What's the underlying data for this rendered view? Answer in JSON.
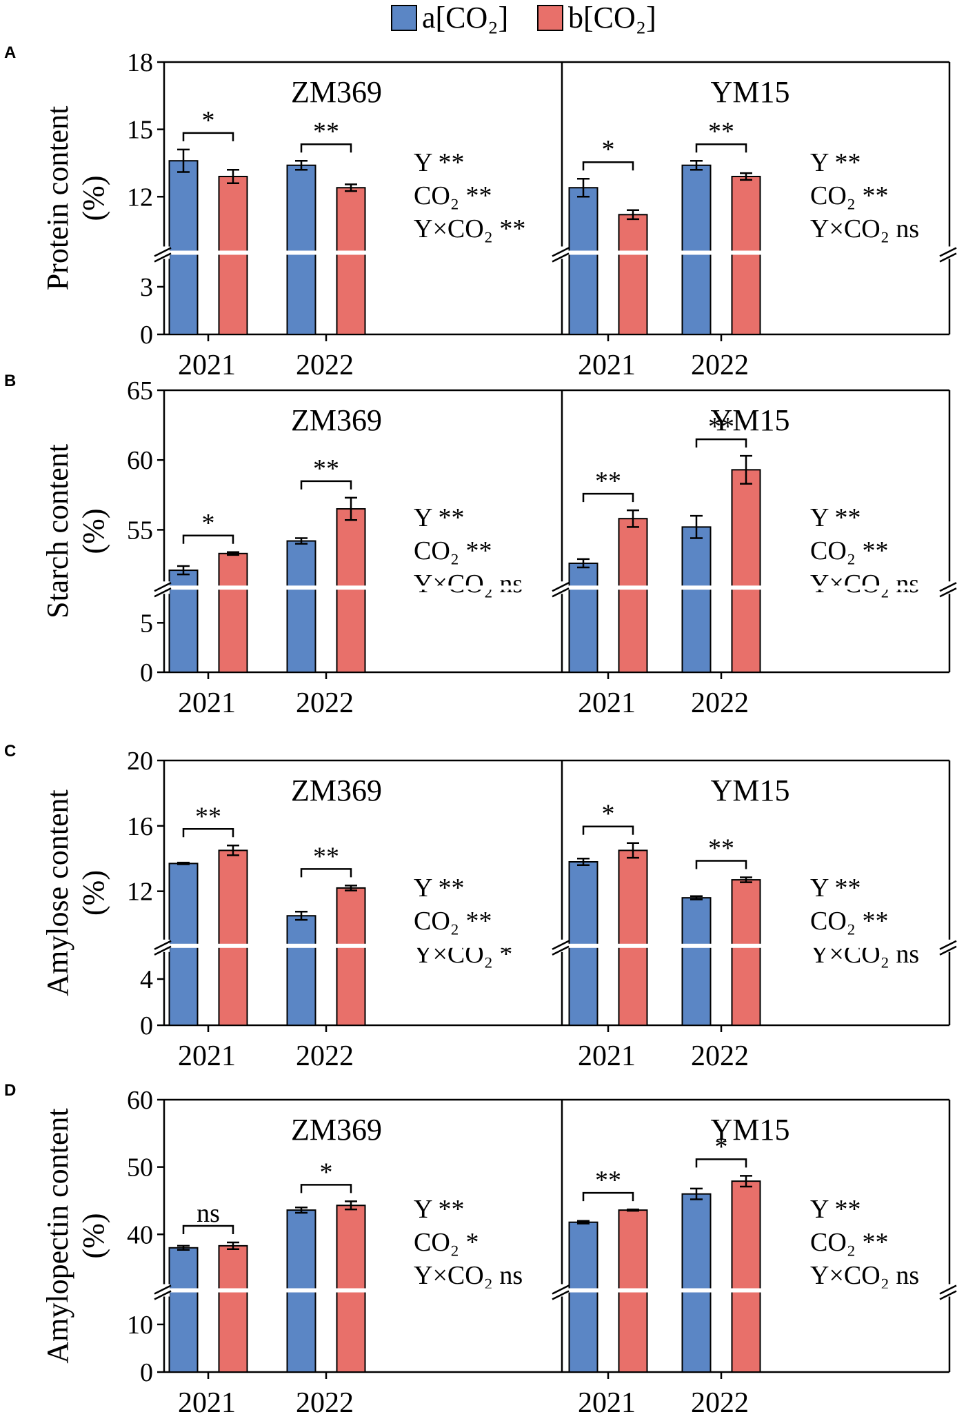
{
  "legend": {
    "entries": [
      {
        "label": "a[CO₂]",
        "color": "#5b86c5"
      },
      {
        "label": "b[CO₂]",
        "color": "#e8706a"
      }
    ]
  },
  "colors": {
    "ambient": "#5b86c5",
    "elevated": "#e8706a",
    "axis": "#000000"
  },
  "chart_data": [
    {
      "type": "bar",
      "panel_label": "A",
      "ylabel_line1": "Protein content",
      "ylabel_line2": "(%)",
      "y_ticks_lower": [
        "0",
        "3"
      ],
      "y_ticks_upper": [
        "12",
        "15",
        "18"
      ],
      "categories": [
        "2021",
        "2022"
      ],
      "series_names": [
        "a[CO₂]",
        "b[CO₂]"
      ],
      "cultivars": [
        {
          "name": "ZM369",
          "values": [
            [
              13.6,
              12.9
            ],
            [
              13.4,
              12.4
            ]
          ],
          "errors": [
            [
              0.5,
              0.3
            ],
            [
              0.2,
              0.15
            ]
          ],
          "pair_labels": [
            "*",
            "**"
          ],
          "stats": [
            "Y **",
            "CO₂ **",
            "Y×CO₂ **"
          ]
        },
        {
          "name": "YM15",
          "values": [
            [
              12.4,
              11.2
            ],
            [
              13.4,
              12.9
            ]
          ],
          "errors": [
            [
              0.4,
              0.2
            ],
            [
              0.2,
              0.15
            ]
          ],
          "pair_labels": [
            "*",
            "**"
          ],
          "stats": [
            "Y **",
            "CO₂ **",
            "Y×CO₂ ns"
          ]
        }
      ]
    },
    {
      "type": "bar",
      "panel_label": "B",
      "ylabel_line1": "Starch content",
      "ylabel_line2": "(%)",
      "y_ticks_lower": [
        "0",
        "5"
      ],
      "y_ticks_upper": [
        "55",
        "60",
        "65"
      ],
      "categories": [
        "2021",
        "2022"
      ],
      "series_names": [
        "a[CO₂]",
        "b[CO₂]"
      ],
      "cultivars": [
        {
          "name": "ZM369",
          "values": [
            [
              52.1,
              53.3
            ],
            [
              54.2,
              56.5
            ]
          ],
          "errors": [
            [
              0.3,
              0.1
            ],
            [
              0.2,
              0.8
            ]
          ],
          "pair_labels": [
            "*",
            "**"
          ],
          "stats": [
            "Y **",
            "CO₂ **",
            "Y×CO₂ ns"
          ]
        },
        {
          "name": "YM15",
          "values": [
            [
              52.6,
              55.8
            ],
            [
              55.2,
              59.3
            ]
          ],
          "errors": [
            [
              0.3,
              0.6
            ],
            [
              0.8,
              1.0
            ]
          ],
          "pair_labels": [
            "**",
            "**"
          ],
          "stats": [
            "Y **",
            "CO₂ **",
            "Y×CO₂ ns"
          ]
        }
      ]
    },
    {
      "type": "bar",
      "panel_label": "C",
      "ylabel_line1": "Amylose content",
      "ylabel_line2": "(%)",
      "y_ticks_lower": [
        "0",
        "4"
      ],
      "y_ticks_upper": [
        "12",
        "16",
        "20"
      ],
      "categories": [
        "2021",
        "2022"
      ],
      "series_names": [
        "a[CO₂]",
        "b[CO₂]"
      ],
      "cultivars": [
        {
          "name": "ZM369",
          "values": [
            [
              13.7,
              14.5
            ],
            [
              10.5,
              12.2
            ]
          ],
          "errors": [
            [
              0.05,
              0.3
            ],
            [
              0.25,
              0.15
            ]
          ],
          "pair_labels": [
            "**",
            "**"
          ],
          "stats": [
            "Y **",
            "CO₂ **",
            "Y×CO₂ *"
          ]
        },
        {
          "name": "YM15",
          "values": [
            [
              13.8,
              14.5
            ],
            [
              11.6,
              12.7
            ]
          ],
          "errors": [
            [
              0.2,
              0.45
            ],
            [
              0.1,
              0.15
            ]
          ],
          "pair_labels": [
            "*",
            "**"
          ],
          "stats": [
            "Y **",
            "CO₂ **",
            "Y×CO₂ ns"
          ]
        }
      ]
    },
    {
      "type": "bar",
      "panel_label": "D",
      "ylabel_line1": "Amylopectin content",
      "ylabel_line2": "(%)",
      "y_ticks_lower": [
        "0",
        "10"
      ],
      "y_ticks_upper": [
        "40",
        "50",
        "60"
      ],
      "categories": [
        "2021",
        "2022"
      ],
      "series_names": [
        "a[CO₂]",
        "b[CO₂]"
      ],
      "cultivars": [
        {
          "name": "ZM369",
          "values": [
            [
              38.0,
              38.3
            ],
            [
              43.6,
              44.3
            ]
          ],
          "errors": [
            [
              0.3,
              0.5
            ],
            [
              0.4,
              0.6
            ]
          ],
          "pair_labels": [
            "ns",
            "*"
          ],
          "stats": [
            "Y **",
            "CO₂ *",
            "Y×CO₂ ns"
          ]
        },
        {
          "name": "YM15",
          "values": [
            [
              41.8,
              43.6
            ],
            [
              46.0,
              47.9
            ]
          ],
          "errors": [
            [
              0.2,
              0.1
            ],
            [
              0.8,
              0.8
            ]
          ],
          "pair_labels": [
            "**",
            "*"
          ],
          "stats": [
            "Y **",
            "CO₂ **",
            "Y×CO₂ ns"
          ]
        }
      ]
    }
  ]
}
